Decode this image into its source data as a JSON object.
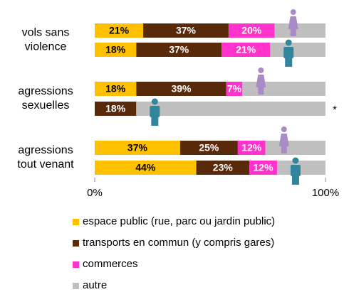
{
  "chart_data": {
    "type": "stacked-barh",
    "categories": [
      [
        "vols sans",
        "violence"
      ],
      null,
      [
        "agressions",
        "sexuelles"
      ],
      null,
      [
        "agressions",
        "tout venant"
      ],
      null
    ],
    "series": [
      {
        "name": "espace public (rue, parc ou jardin public)",
        "color": "#ffc000",
        "values": [
          21,
          18,
          18,
          null,
          37,
          44
        ],
        "value_labels": [
          "21%",
          "18%",
          "18%",
          null,
          "37%",
          "44%"
        ]
      },
      {
        "name": "transports en commun (y compris gares)",
        "color": "#582a0a",
        "values": [
          37,
          37,
          39,
          18,
          25,
          23
        ],
        "value_labels": [
          "37%",
          "37%",
          "39%",
          "18%",
          "25%",
          "23%"
        ]
      },
      {
        "name": "commerces",
        "color": "#ff33cc",
        "values": [
          20,
          21,
          7,
          null,
          12,
          12
        ],
        "value_labels": [
          "20%",
          "21%",
          "7%",
          null,
          "12%",
          "12%"
        ]
      },
      {
        "name": "autre",
        "color": "#bfbfbf",
        "values": [
          22,
          24,
          36,
          82,
          26,
          21
        ]
      }
    ],
    "xlim": [
      0,
      100
    ],
    "xticks": [
      {
        "value": 0,
        "label": "0%"
      },
      {
        "value": 100,
        "label": "100%"
      }
    ],
    "annotations": [
      "*"
    ]
  }
}
